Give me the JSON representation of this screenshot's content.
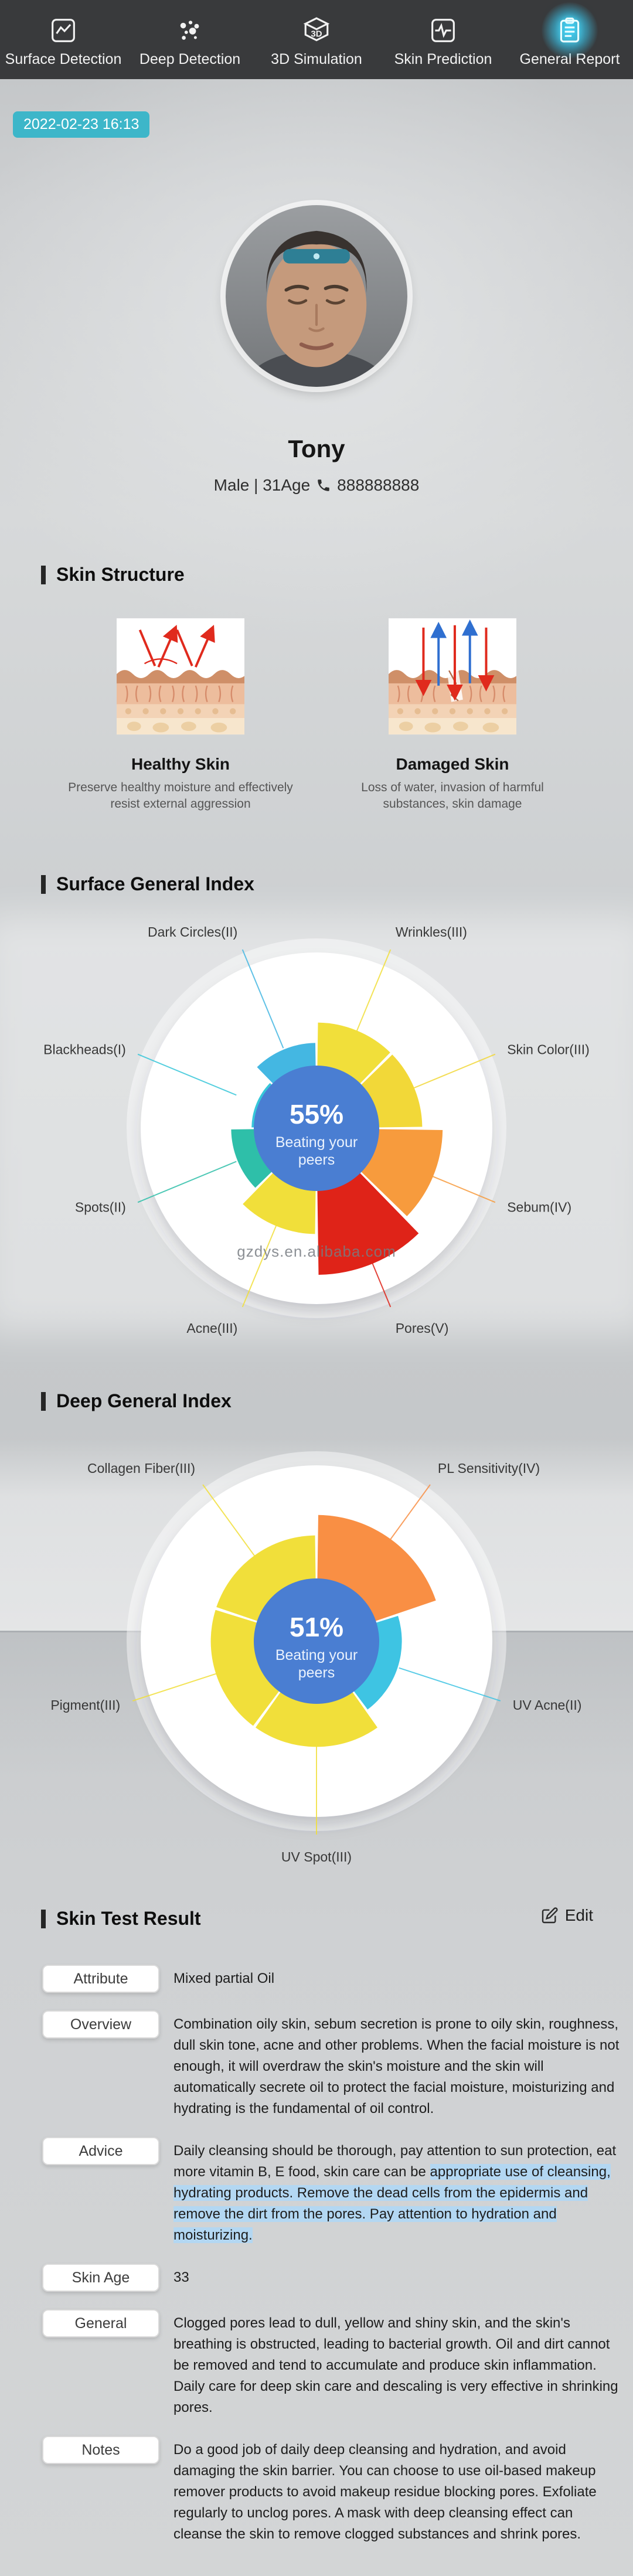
{
  "nav": {
    "items": [
      {
        "label": "Surface Detection",
        "icon": "line-chart-icon",
        "active": false
      },
      {
        "label": "Deep Detection",
        "icon": "dots-cluster-icon",
        "active": false
      },
      {
        "label": "3D Simulation",
        "icon": "cube-3d-icon",
        "active": false
      },
      {
        "label": "Skin Prediction",
        "icon": "waveform-icon",
        "active": false
      },
      {
        "label": "General Report",
        "icon": "clipboard-icon",
        "active": true
      }
    ]
  },
  "timestamp": "2022-02-23 16:13",
  "profile": {
    "name": "Tony",
    "meta_left": "Male | 31Age",
    "phone": "888888888"
  },
  "skin_structure": {
    "title": "Skin Structure",
    "items": [
      {
        "title": "Healthy Skin",
        "desc": "Preserve healthy moisture and effectively resist external aggression"
      },
      {
        "title": "Damaged Skin",
        "desc": "Loss of water, invasion of harmful substances, skin damage"
      }
    ]
  },
  "watermark": "gzdys.en.alibaba.com",
  "chart_data": [
    {
      "type": "rose",
      "title": "Surface General Index",
      "center_value": "55%",
      "center_label": "Beating your peers",
      "max_level": 5,
      "center_color": "#4a7ed2",
      "sectors": [
        {
          "label": "Wrinkles(III)",
          "level": 3,
          "color": "#f1df3a"
        },
        {
          "label": "Skin Color(III)",
          "level": 3,
          "color": "#f2d838"
        },
        {
          "label": "Sebum(IV)",
          "level": 4,
          "color": "#f79b3d"
        },
        {
          "label": "Pores(V)",
          "level": 5,
          "color": "#df2318"
        },
        {
          "label": "Acne(III)",
          "level": 3,
          "color": "#f1df3a"
        },
        {
          "label": "Spots(II)",
          "level": 2,
          "color": "#2ebfa9"
        },
        {
          "label": "Blackheads(I)",
          "level": 1,
          "color": "#36c6d9"
        },
        {
          "label": "Dark Circles(II)",
          "level": 2,
          "color": "#44b7e2"
        }
      ]
    },
    {
      "type": "rose",
      "title": "Deep General Index",
      "center_value": "51%",
      "center_label": "Beating your peers",
      "max_level": 5,
      "center_color": "#4a7ed2",
      "sectors": [
        {
          "label": "PL Sensitivity(IV)",
          "level": 4,
          "color": "#f98f44"
        },
        {
          "label": "UV Acne(II)",
          "level": 2,
          "color": "#3ec4e3"
        },
        {
          "label": "UV Spot(III)",
          "level": 3,
          "color": "#f1df3a"
        },
        {
          "label": "Pigment(III)",
          "level": 3,
          "color": "#f1df3a"
        },
        {
          "label": "Collagen Fiber(III)",
          "level": 3,
          "color": "#f1df3a"
        }
      ]
    }
  ],
  "test_result": {
    "title": "Skin Test Result",
    "edit_label": "Edit",
    "rows": [
      {
        "label": "Attribute",
        "text": "Mixed partial Oil"
      },
      {
        "label": "Overview",
        "text": "Combination oily skin, sebum secretion is prone to oily skin, roughness, dull skin tone, acne and other problems. When the facial moisture is not enough, it will overdraw the skin's moisture and the skin will automatically secrete oil to protect the facial moisture, moisturizing and hydrating is the fundamental of oil control."
      },
      {
        "label": "Advice",
        "text": "Daily cleansing should be thorough, pay attention to sun protection, eat more vitamin B, E food, skin care can be ",
        "highlight": "appropriate use of cleansing, hydrating products. Remove the dead cells from the epidermis and remove the dirt from the pores. Pay attention to hydration and moisturizing."
      },
      {
        "label": "Skin Age",
        "text": "33"
      },
      {
        "label": "General",
        "text": "Clogged pores lead to dull, yellow and shiny skin, and the skin's breathing is obstructed, leading to bacterial growth. Oil and dirt cannot be removed and tend to accumulate and produce skin inflammation. Daily care for deep skin care and descaling is very effective in shrinking pores."
      },
      {
        "label": "Notes",
        "text": "Do a good job of daily deep cleansing and hydration, and avoid damaging the skin barrier. You can choose to use oil-based makeup remover products to avoid makeup residue blocking pores. Exfoliate regularly to unclog pores. A mask with deep cleansing effect can cleanse the skin to remove clogged substances and shrink pores."
      }
    ]
  }
}
